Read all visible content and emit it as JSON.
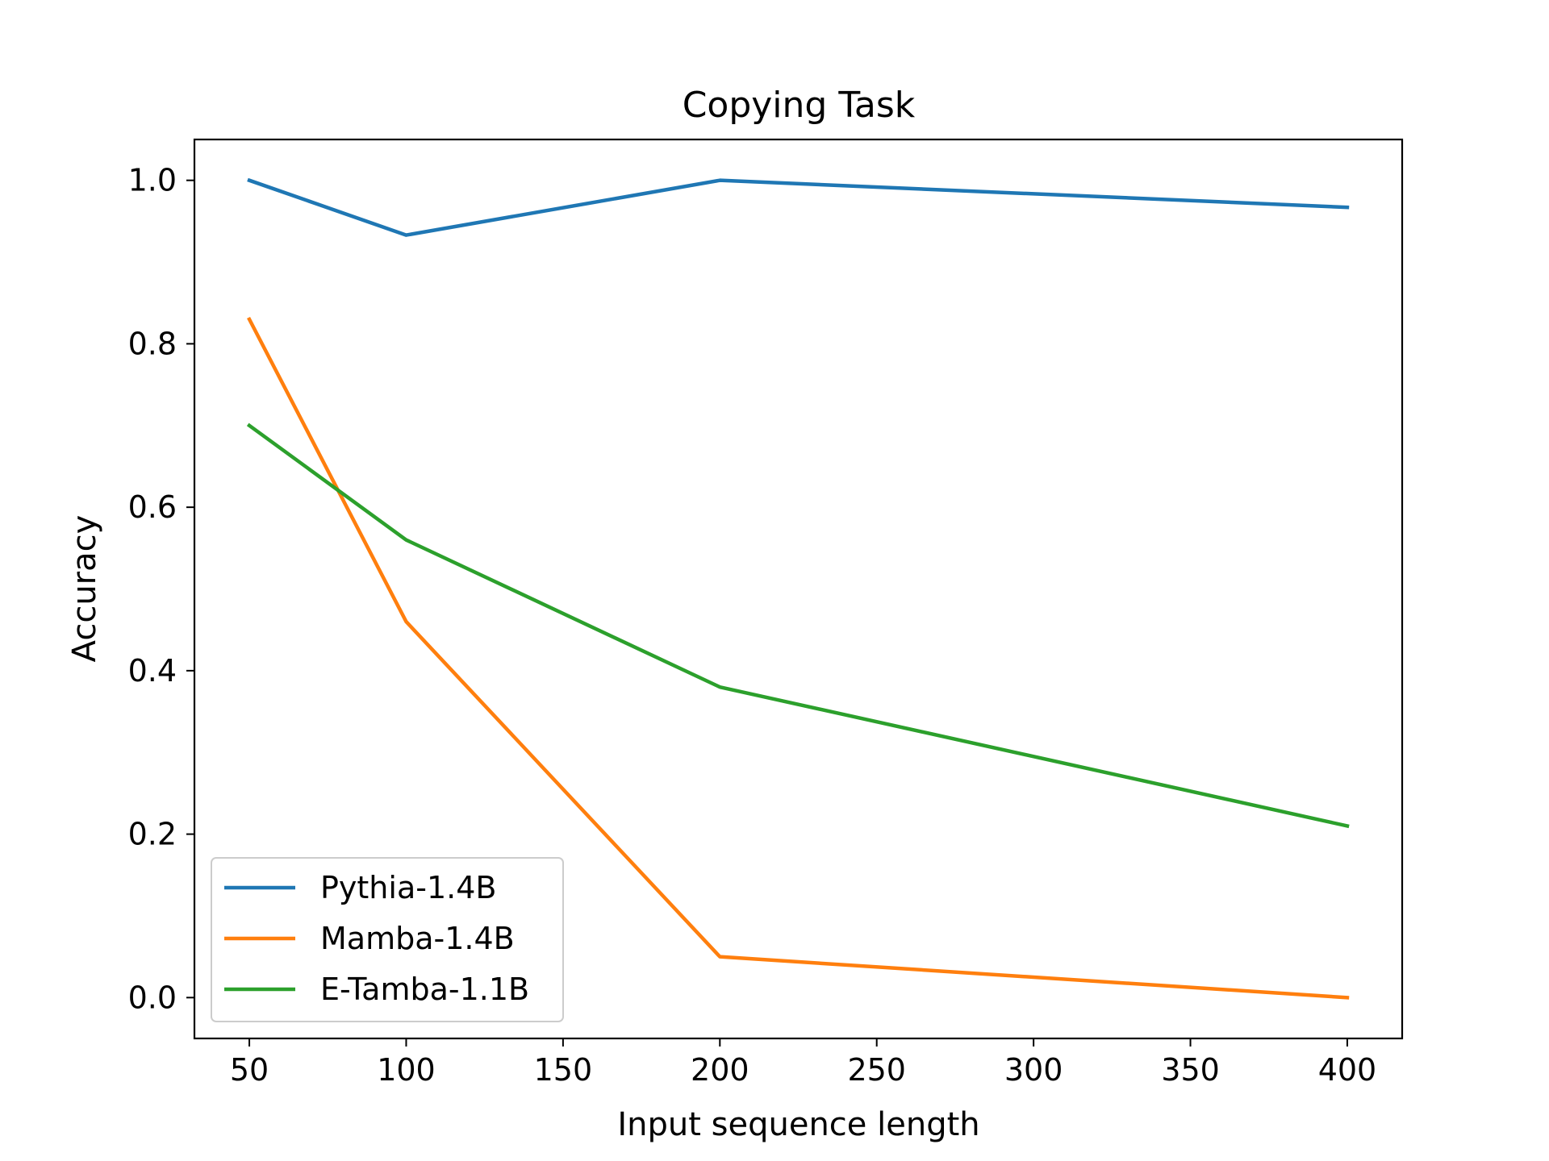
{
  "chart_data": {
    "type": "line",
    "title": "Copying Task",
    "xlabel": "Input sequence length",
    "ylabel": "Accuracy",
    "x": [
      50,
      100,
      200,
      400
    ],
    "xticks": [
      "50",
      "100",
      "150",
      "200",
      "250",
      "300",
      "350",
      "400"
    ],
    "xtick_values": [
      50,
      100,
      150,
      200,
      250,
      300,
      350,
      400
    ],
    "yticks": [
      "0.0",
      "0.2",
      "0.4",
      "0.6",
      "0.8",
      "1.0"
    ],
    "ytick_values": [
      0.0,
      0.2,
      0.4,
      0.6,
      0.8,
      1.0
    ],
    "xlim": [
      32.5,
      417.5
    ],
    "ylim": [
      -0.05,
      1.05
    ],
    "grid": false,
    "legend_position": "lower-left",
    "series": [
      {
        "name": "Pythia-1.4B",
        "color": "#1f77b4",
        "values": [
          1.0,
          0.933,
          1.0,
          0.967
        ]
      },
      {
        "name": "Mamba-1.4B",
        "color": "#ff7f0e",
        "values": [
          0.83,
          0.46,
          0.05,
          0.0
        ]
      },
      {
        "name": "E-Tamba-1.1B",
        "color": "#2ca02c",
        "values": [
          0.7,
          0.56,
          0.38,
          0.21
        ]
      }
    ]
  }
}
